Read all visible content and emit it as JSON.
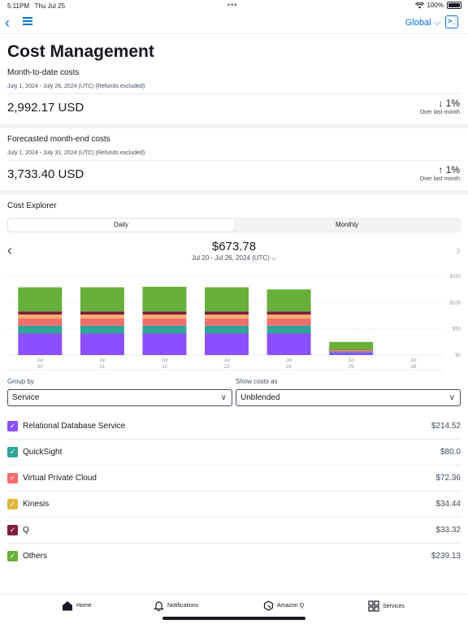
{
  "status_bar": {
    "time": "5:11PM",
    "date": "Thu Jul 25",
    "battery": "100%"
  },
  "nav": {
    "region": "Global"
  },
  "page_title": "Cost Management",
  "month_to_date": {
    "label": "Month-to-date costs",
    "range": "July 1, 2024 - July 26, 2024 (UTC) (Refunds excluded)",
    "amount": "2,992.17 USD",
    "change": "1%",
    "direction": "down",
    "change_label": "Over last month"
  },
  "forecast": {
    "label": "Forecasted month-end costs",
    "range": "July 1, 2024 - July 31, 2024 (UTC) (Refunds excluded)",
    "amount": "3,733.40 USD",
    "change": "1%",
    "direction": "up",
    "change_label": "Over last month"
  },
  "cost_explorer": {
    "title": "Cost Explorer",
    "tabs": [
      {
        "label": "Daily",
        "active": true
      },
      {
        "label": "Monthly",
        "active": false
      }
    ],
    "total": "$673.78",
    "period": "Jul 20 - Jul 26, 2024 (UTC)"
  },
  "chart_data": {
    "type": "bar",
    "stacked": true,
    "categories": [
      {
        "month": "Jul",
        "day": "20"
      },
      {
        "month": "Jul",
        "day": "21"
      },
      {
        "month": "Jul",
        "day": "22"
      },
      {
        "month": "Jul",
        "day": "23"
      },
      {
        "month": "Jul",
        "day": "24"
      },
      {
        "month": "Jul",
        "day": "25"
      },
      {
        "month": "Jul",
        "day": "26"
      }
    ],
    "y_ticks": [
      {
        "value": 150,
        "label": "$150"
      },
      {
        "value": 100,
        "label": "$100"
      },
      {
        "value": 50,
        "label": "$50"
      },
      {
        "value": 0,
        "label": "$0"
      }
    ],
    "ylim": [
      0,
      150
    ],
    "grid": true,
    "series": [
      {
        "name": "Relational Database Service",
        "color": "#8c4fff",
        "values": [
          41,
          41,
          41,
          41,
          41,
          5,
          0
        ]
      },
      {
        "name": "QuickSight",
        "color": "#2ea597",
        "values": [
          15,
          15,
          15,
          15,
          15,
          2,
          0
        ]
      },
      {
        "name": "Virtual Private Cloud",
        "color": "#f86d6d",
        "values": [
          14,
          14,
          14,
          14,
          14,
          2,
          0
        ]
      },
      {
        "name": "Kinesis",
        "color": "#f6b26b",
        "values": [
          7,
          7,
          7,
          7,
          7,
          1,
          0
        ]
      },
      {
        "name": "Q",
        "color": "#7d1d3f",
        "values": [
          6,
          6,
          6,
          6,
          6,
          1,
          0
        ]
      },
      {
        "name": "Others",
        "color": "#67b03b",
        "values": [
          46,
          46,
          47,
          46,
          42,
          14,
          0
        ]
      }
    ]
  },
  "group_by": {
    "label": "Group by",
    "value": "Service"
  },
  "show_costs": {
    "label": "Show costs as",
    "value": "Unblended"
  },
  "services": [
    {
      "name": "Relational Database Service",
      "cost": "$214.52",
      "color": "#8c4fff"
    },
    {
      "name": "QuickSight",
      "cost": "$80.0",
      "color": "#2ea597"
    },
    {
      "name": "Virtual Private Cloud",
      "cost": "$72.36",
      "color": "#f86d6d"
    },
    {
      "name": "Kinesis",
      "cost": "$34.44",
      "color": "#e0b43a"
    },
    {
      "name": "Q",
      "cost": "$33.32",
      "color": "#7d1d3f"
    },
    {
      "name": "Others",
      "cost": "$239.13",
      "color": "#67b03b"
    }
  ],
  "tab_bar": [
    {
      "label": "Home",
      "icon": "home-icon"
    },
    {
      "label": "Notifications",
      "icon": "bell-icon"
    },
    {
      "label": "Amazon Q",
      "icon": "amazon-q-icon"
    },
    {
      "label": "Services",
      "icon": "grid-icon"
    }
  ]
}
